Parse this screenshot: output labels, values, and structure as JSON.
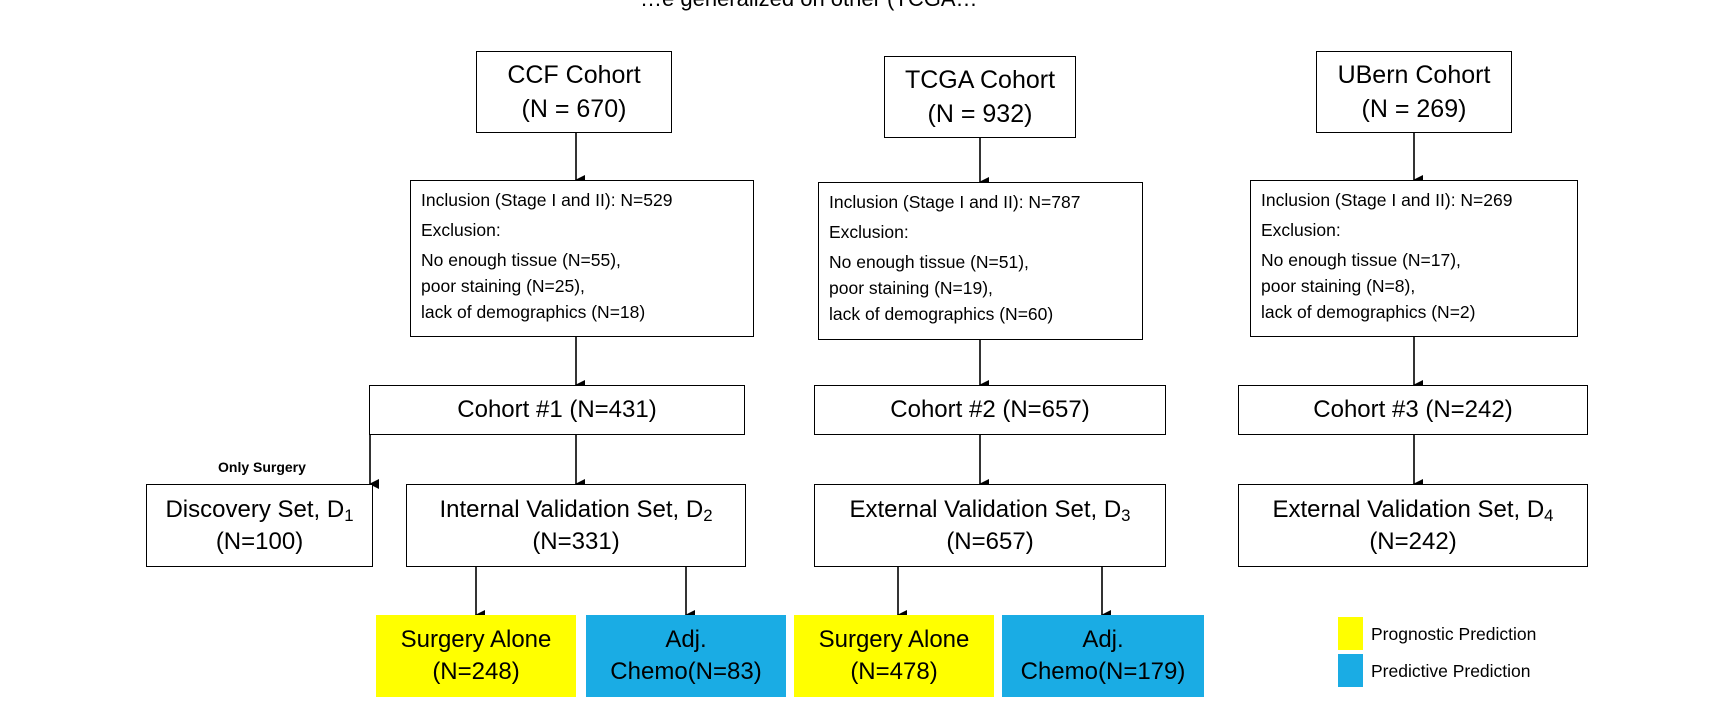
{
  "header_partial": "…e generalized on other (TCGA…",
  "colors": {
    "prognostic": "#ffff00",
    "predictive": "#1aace4"
  },
  "cohorts": [
    {
      "source": {
        "name": "CCF Cohort",
        "n": "(N = 670)"
      },
      "criteria": {
        "inclusion": "Inclusion (Stage I and II): N=529",
        "exclusion_title": "Exclusion:",
        "items": [
          "No enough tissue (N=55),",
          "poor staining (N=25),",
          "lack of demographics (N=18)"
        ]
      },
      "cohort": "Cohort #1 (N=431)"
    },
    {
      "source": {
        "name": "TCGA Cohort",
        "n": "(N = 932)"
      },
      "criteria": {
        "inclusion": "Inclusion (Stage I and II): N=787",
        "exclusion_title": "Exclusion:",
        "items": [
          "No enough tissue (N=51),",
          "poor staining (N=19),",
          "lack of demographics (N=60)"
        ]
      },
      "cohort": "Cohort #2 (N=657)"
    },
    {
      "source": {
        "name": "UBern Cohort",
        "n": "(N = 269)"
      },
      "criteria": {
        "inclusion": "Inclusion (Stage I and II): N=269",
        "exclusion_title": "Exclusion:",
        "items": [
          "No enough tissue (N=17),",
          "poor staining (N=8),",
          "lack of demographics (N=2)"
        ]
      },
      "cohort": "Cohort #3 (N=242)"
    }
  ],
  "only_surgery_label": "Only Surgery",
  "sets": {
    "d1": {
      "name": "Discovery Set, D",
      "sub": "1",
      "n": "(N=100)"
    },
    "d2": {
      "name": "Internal Validation Set, D",
      "sub": "2",
      "n": "(N=331)"
    },
    "d3": {
      "name": "External Validation Set, D",
      "sub": "3",
      "n": "(N=657)"
    },
    "d4": {
      "name": "External Validation Set, D",
      "sub": "4",
      "n": "(N=242)"
    }
  },
  "outcomes": {
    "ccf_surgery": {
      "line1": "Surgery Alone",
      "line2": "(N=248)"
    },
    "ccf_chemo": {
      "line1": "Adj.",
      "line2": "Chemo(N=83)"
    },
    "tcga_surgery": {
      "line1": "Surgery Alone",
      "line2": "(N=478)"
    },
    "tcga_chemo": {
      "line1": "Adj.",
      "line2": "Chemo(N=179)"
    }
  },
  "legend": {
    "prognostic": "Prognostic Prediction",
    "predictive": "Predictive Prediction"
  }
}
